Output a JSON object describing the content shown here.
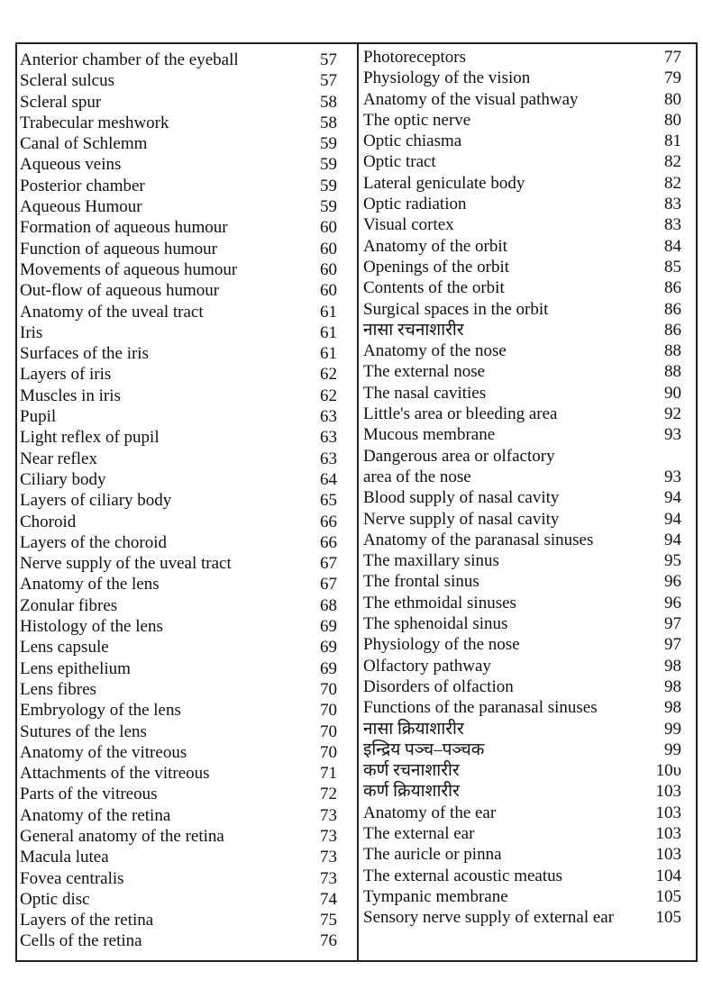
{
  "left_entries": [
    {
      "title": "Anterior chamber of the eyeball",
      "page": "57"
    },
    {
      "title": "Scleral sulcus",
      "page": "57"
    },
    {
      "title": "Scleral spur",
      "page": "58"
    },
    {
      "title": "Trabecular meshwork",
      "page": "58"
    },
    {
      "title": "Canal of Schlemm",
      "page": "59"
    },
    {
      "title": "Aqueous veins",
      "page": "59"
    },
    {
      "title": "Posterior chamber",
      "page": "59"
    },
    {
      "title": "Aqueous Humour",
      "page": "59"
    },
    {
      "title": "Formation of aqueous humour",
      "page": "60"
    },
    {
      "title": "Function of aqueous humour",
      "page": "60"
    },
    {
      "title": "Movements of aqueous humour",
      "page": "60"
    },
    {
      "title": "Out-flow of aqueous humour",
      "page": "60"
    },
    {
      "title": "Anatomy of the uveal tract",
      "page": "61"
    },
    {
      "title": "Iris",
      "page": "61"
    },
    {
      "title": "Surfaces of the iris",
      "page": "61"
    },
    {
      "title": "Layers of iris",
      "page": "62"
    },
    {
      "title": "Muscles in iris",
      "page": "62"
    },
    {
      "title": "Pupil",
      "page": "63"
    },
    {
      "title": "Light reflex of pupil",
      "page": "63"
    },
    {
      "title": "Near reflex",
      "page": "63"
    },
    {
      "title": "Ciliary body",
      "page": "64"
    },
    {
      "title": "Layers of ciliary body",
      "page": "65"
    },
    {
      "title": "Choroid",
      "page": "66"
    },
    {
      "title": "Layers of the choroid",
      "page": "66"
    },
    {
      "title": "Nerve supply of the uveal tract",
      "page": "67"
    },
    {
      "title": "Anatomy of the lens",
      "page": "67"
    },
    {
      "title": "Zonular fibres",
      "page": "68"
    },
    {
      "title": "Histology of the lens",
      "page": "69"
    },
    {
      "title": "Lens capsule",
      "page": "69"
    },
    {
      "title": "Lens epithelium",
      "page": "69"
    },
    {
      "title": "Lens fibres",
      "page": "70"
    },
    {
      "title": "Embryology of the lens",
      "page": "70"
    },
    {
      "title": "Sutures of the lens",
      "page": "70"
    },
    {
      "title": "Anatomy of the vitreous",
      "page": "70"
    },
    {
      "title": "Attachments of the vitreous",
      "page": "71"
    },
    {
      "title": "Parts of the vitreous",
      "page": "72"
    },
    {
      "title": "Anatomy of the retina",
      "page": "73"
    },
    {
      "title": "General anatomy of the retina",
      "page": "73"
    },
    {
      "title": "Macula lutea",
      "page": "73"
    },
    {
      "title": "Fovea centralis",
      "page": "73"
    },
    {
      "title": "Optic disc",
      "page": "74"
    },
    {
      "title": "Layers of the retina",
      "page": "75"
    },
    {
      "title": "Cells of the retina",
      "page": "76"
    }
  ],
  "right_entries": [
    {
      "title": "Photoreceptors",
      "page": "77"
    },
    {
      "title": "Physiology of the vision",
      "page": "79"
    },
    {
      "title": "Anatomy of the visual pathway",
      "page": "80"
    },
    {
      "title": "The optic nerve",
      "page": "80"
    },
    {
      "title": "Optic chiasma",
      "page": "81"
    },
    {
      "title": "Optic tract",
      "page": "82"
    },
    {
      "title": "Lateral geniculate body",
      "page": "82"
    },
    {
      "title": "Optic radiation",
      "page": "83"
    },
    {
      "title": "Visual cortex",
      "page": "83"
    },
    {
      "title": "Anatomy of the orbit",
      "page": "84"
    },
    {
      "title": "Openings of the orbit",
      "page": "85"
    },
    {
      "title": "Contents of the orbit",
      "page": "86"
    },
    {
      "title": "Surgical spaces in the orbit",
      "page": "86"
    },
    {
      "title": "नासा रचनाशारीर",
      "page": "86"
    },
    {
      "title": "Anatomy of the nose",
      "page": "88"
    },
    {
      "title": "The external nose",
      "page": "88"
    },
    {
      "title": "The nasal cavities",
      "page": "90"
    },
    {
      "title": "Little's area or bleeding area",
      "page": "92"
    },
    {
      "title": "Mucous membrane",
      "page": "93"
    },
    {
      "title": "Dangerous area or olfactory",
      "page": ""
    },
    {
      "title": "area of the nose",
      "page": "93"
    },
    {
      "title": "Blood supply of nasal cavity",
      "page": "94"
    },
    {
      "title": "Nerve supply of nasal cavity",
      "page": "94"
    },
    {
      "title": "Anatomy of the paranasal sinuses",
      "page": "94"
    },
    {
      "title": "The maxillary sinus",
      "page": "95"
    },
    {
      "title": "The frontal sinus",
      "page": "96"
    },
    {
      "title": "The ethmoidal sinuses",
      "page": "96"
    },
    {
      "title": "The sphenoidal sinus",
      "page": "97"
    },
    {
      "title": "Physiology of the nose",
      "page": "97"
    },
    {
      "title": "Olfactory pathway",
      "page": "98"
    },
    {
      "title": "Disorders of olfaction",
      "page": "98"
    },
    {
      "title": "Functions of the paranasal sinuses",
      "page": "98"
    },
    {
      "title": "नासा क्रियाशारीर",
      "page": "99"
    },
    {
      "title": "इन्द्रिय पञ्च–पञ्चक",
      "page": "99"
    },
    {
      "title": "कर्ण रचनाशारीर",
      "page": "10υ"
    },
    {
      "title": "कर्ण क्रियाशारीर",
      "page": "103"
    },
    {
      "title": "Anatomy of the ear",
      "page": "103"
    },
    {
      "title": "The external ear",
      "page": "103"
    },
    {
      "title": "The auricle or pinna",
      "page": "103"
    },
    {
      "title": "The external acoustic meatus",
      "page": "104"
    },
    {
      "title": "Tympanic membrane",
      "page": "105"
    },
    {
      "title": "Sensory nerve supply of external ear",
      "page": "105"
    }
  ]
}
